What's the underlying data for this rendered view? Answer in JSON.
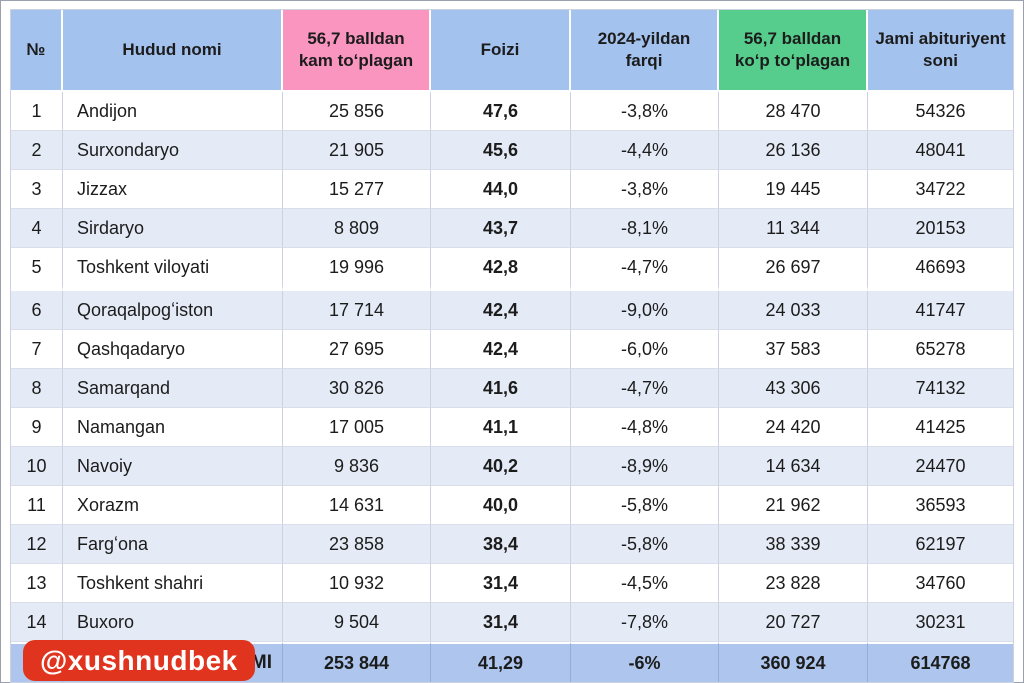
{
  "colors": {
    "header_blue": "#a4c2ee",
    "pink": "#f995be",
    "green": "#57cd8d",
    "stripe": "#e4ebf6",
    "total_row": "#aec6ed",
    "badge_red": "#e1341e",
    "text": "#1c1c1c"
  },
  "watermark": {
    "handle": "@xushnudbek"
  },
  "table": {
    "columns": [
      {
        "key": "num",
        "label": "№",
        "bg": "header_blue"
      },
      {
        "key": "region",
        "label": "Hudud nomi",
        "bg": "header_blue"
      },
      {
        "key": "below",
        "label": "56,7 balldan kam toʻplagan",
        "bg": "pink"
      },
      {
        "key": "pct",
        "label": "Foizi",
        "bg": "header_blue"
      },
      {
        "key": "diff",
        "label": "2024-yildan farqi",
        "bg": "header_blue"
      },
      {
        "key": "above",
        "label": "56,7 balldan koʻp toʻplagan",
        "bg": "green"
      },
      {
        "key": "total",
        "label": "Jami abituriyent soni",
        "bg": "header_blue"
      }
    ],
    "rows": [
      {
        "num": "1",
        "region": "Andijon",
        "below": "25 856",
        "pct": "47,6",
        "diff": "-3,8%",
        "above": "28 470",
        "total": "54326"
      },
      {
        "num": "2",
        "region": "Surxondaryo",
        "below": "21 905",
        "pct": "45,6",
        "diff": "-4,4%",
        "above": "26 136",
        "total": "48041"
      },
      {
        "num": "3",
        "region": "Jizzax",
        "below": "15 277",
        "pct": "44,0",
        "diff": "-3,8%",
        "above": "19 445",
        "total": "34722"
      },
      {
        "num": "4",
        "region": "Sirdaryo",
        "below": "8 809",
        "pct": "43,7",
        "diff": "-8,1%",
        "above": "11 344",
        "total": "20153"
      },
      {
        "num": "5",
        "region": "Toshkent viloyati",
        "below": "19 996",
        "pct": "42,8",
        "diff": "-4,7%",
        "above": "26 697",
        "total": "46693"
      },
      {
        "num": "6",
        "region": "Qoraqalpogʻiston",
        "below": "17 714",
        "pct": "42,4",
        "diff": "-9,0%",
        "above": "24 033",
        "total": "41747"
      },
      {
        "num": "7",
        "region": "Qashqadaryo",
        "below": "27 695",
        "pct": "42,4",
        "diff": "-6,0%",
        "above": "37 583",
        "total": "65278"
      },
      {
        "num": "8",
        "region": "Samarqand",
        "below": "30 826",
        "pct": "41,6",
        "diff": "-4,7%",
        "above": "43 306",
        "total": "74132"
      },
      {
        "num": "9",
        "region": "Namangan",
        "below": "17 005",
        "pct": "41,1",
        "diff": "-4,8%",
        "above": "24 420",
        "total": "41425"
      },
      {
        "num": "10",
        "region": "Navoiy",
        "below": "9 836",
        "pct": "40,2",
        "diff": "-8,9%",
        "above": "14 634",
        "total": "24470"
      },
      {
        "num": "11",
        "region": "Xorazm",
        "below": "14 631",
        "pct": "40,0",
        "diff": "-5,8%",
        "above": "21 962",
        "total": "36593"
      },
      {
        "num": "12",
        "region": "Fargʻona",
        "below": "23 858",
        "pct": "38,4",
        "diff": "-5,8%",
        "above": "38 339",
        "total": "62197"
      },
      {
        "num": "13",
        "region": "Toshkent shahri",
        "below": "10 932",
        "pct": "31,4",
        "diff": "-4,5%",
        "above": "23 828",
        "total": "34760"
      },
      {
        "num": "14",
        "region": "Buxoro",
        "below": "9 504",
        "pct": "31,4",
        "diff": "-7,8%",
        "above": "20 727",
        "total": "30231"
      }
    ],
    "gap_after_row_index": 4,
    "total_row": {
      "num": "",
      "region": "JAMI",
      "below": "253 844",
      "pct": "41,29",
      "diff": "-6%",
      "above": "360 924",
      "total": "614768"
    }
  }
}
